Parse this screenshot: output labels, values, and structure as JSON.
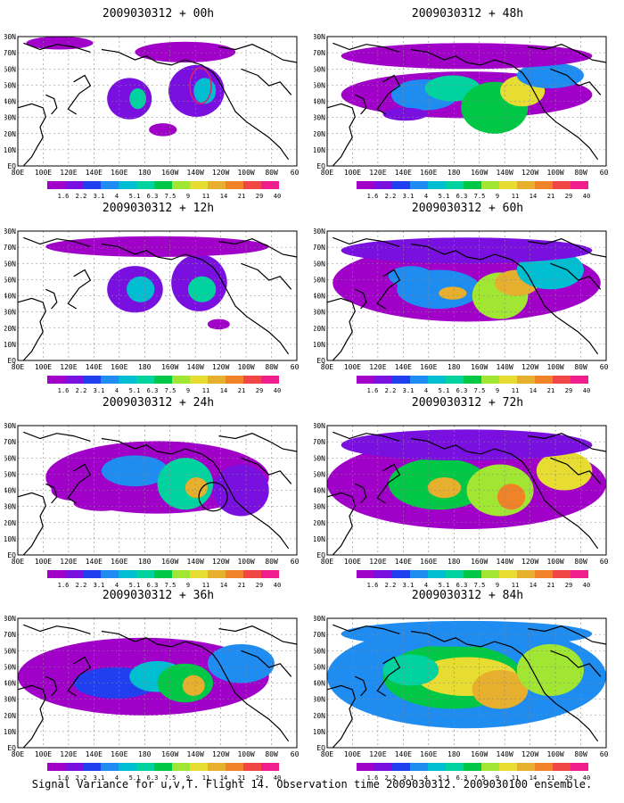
{
  "page": {
    "caption": "Signal Variance for u,v,T. Flight 14. Observation time 2009030312. 2009030100 ensemble."
  },
  "axes": {
    "lon_labels": [
      "80E",
      "100E",
      "120E",
      "140E",
      "160E",
      "180",
      "160W",
      "140W",
      "120W",
      "100W",
      "80W",
      "60W"
    ],
    "lat_labels": [
      "80N",
      "70N",
      "60N",
      "50N",
      "40N",
      "30N",
      "20N",
      "10N",
      "EQ"
    ]
  },
  "colorbar": {
    "labels": [
      "1.6",
      "2.2",
      "3.1",
      "4",
      "5.1",
      "6.3",
      "7.5",
      "9",
      "11",
      "14",
      "21",
      "29",
      "40"
    ],
    "colors": [
      "#a000c8",
      "#7a10e0",
      "#2040f0",
      "#1e8cf0",
      "#00bed2",
      "#00d2a0",
      "#00c846",
      "#a0e632",
      "#e6dc32",
      "#e6af2d",
      "#f08228",
      "#f04646",
      "#f01e8c"
    ]
  },
  "panels": [
    {
      "id": "p00",
      "title": "2009030312 + 00h",
      "level": 0
    },
    {
      "id": "p48",
      "title": "2009030312 + 48h",
      "level": 4
    },
    {
      "id": "p12",
      "title": "2009030312 + 12h",
      "level": 1
    },
    {
      "id": "p60",
      "title": "2009030312 + 60h",
      "level": 5
    },
    {
      "id": "p24",
      "title": "2009030312 + 24h",
      "level": 2
    },
    {
      "id": "p72",
      "title": "2009030312 + 72h",
      "level": 6
    },
    {
      "id": "p36",
      "title": "2009030312 + 36h",
      "level": 3
    },
    {
      "id": "p84",
      "title": "2009030312 + 84h",
      "level": 7
    }
  ]
}
